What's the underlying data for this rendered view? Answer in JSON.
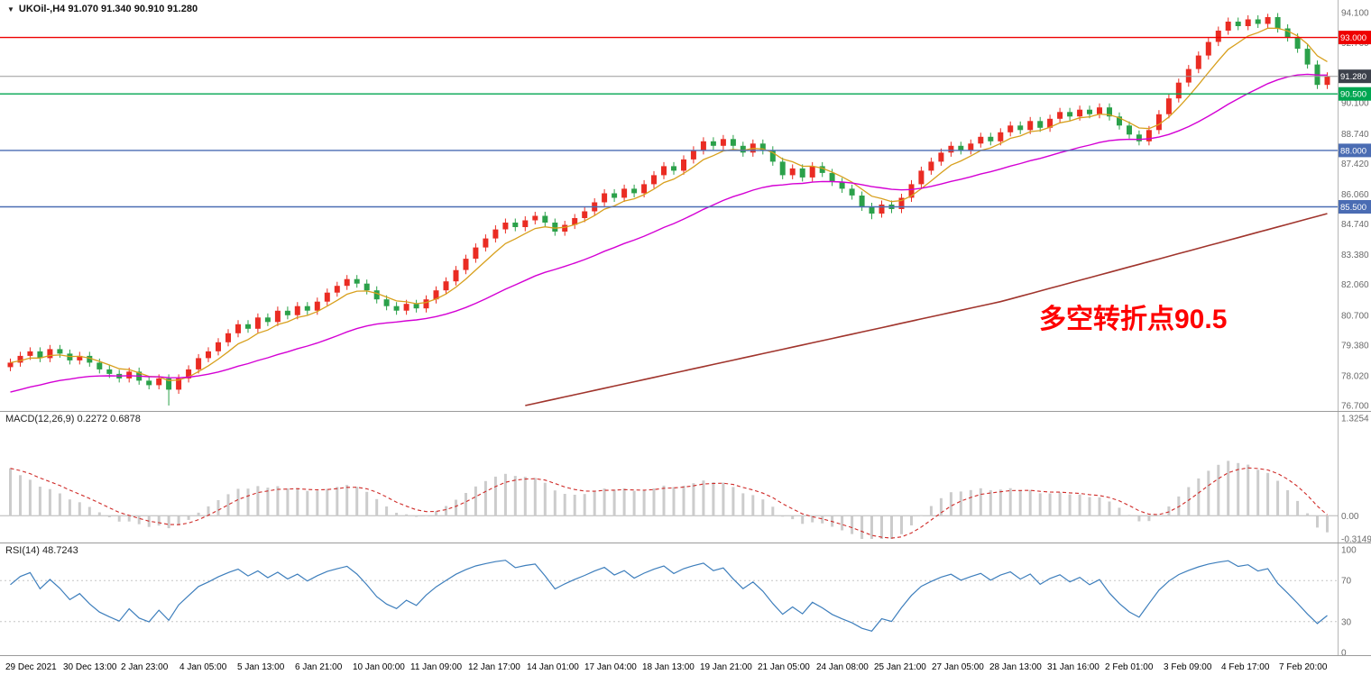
{
  "window": {
    "title_line": "UKOil-,H4 91.070 91.340 90.910 91.280"
  },
  "chart_data": {
    "type": "candlestick",
    "symbol": "UKOil-",
    "timeframe": "H4",
    "ohlc_display": {
      "open": "91.070",
      "high": "91.340",
      "low": "90.910",
      "close": "91.280"
    },
    "ylim": [
      76.7,
      94.1
    ],
    "price_axis_labels": [
      "94.100",
      "92.760",
      "91.420",
      "90.100",
      "88.740",
      "87.420",
      "86.060",
      "84.740",
      "83.380",
      "82.060",
      "80.700",
      "79.380",
      "78.020",
      "76.700"
    ],
    "levels": [
      {
        "value": 93.0,
        "label": "93.000",
        "line_color": "#ee0000",
        "tag_color": "#ee0000",
        "current": false
      },
      {
        "value": 91.28,
        "label": "91.280",
        "line_color": "#9a9a9a",
        "tag_color": "#3c414b",
        "current": true
      },
      {
        "value": 90.5,
        "label": "90.500",
        "line_color": "#00a651",
        "tag_color": "#00a651",
        "current": false
      },
      {
        "value": 88.0,
        "label": "88.000",
        "line_color": "#4a6cb3",
        "tag_color": "#4a6cb3",
        "current": false
      },
      {
        "value": 85.5,
        "label": "85.500",
        "line_color": "#4a6cb3",
        "tag_color": "#4a6cb3",
        "current": false
      }
    ],
    "candles": {
      "open_first": 78.4,
      "wick": 0.18,
      "up_color": "#ea2c23",
      "down_color": "#2ba14a",
      "overrides": {
        "16": {
          "low": 76.7
        },
        "87": {
          "low": 84.95
        },
        "127": {
          "high": 94.05
        }
      },
      "closes": [
        78.6,
        78.9,
        79.1,
        78.8,
        79.2,
        79.0,
        78.7,
        78.9,
        78.6,
        78.3,
        78.1,
        77.9,
        78.2,
        77.8,
        77.6,
        77.9,
        77.4,
        77.9,
        78.3,
        78.8,
        79.1,
        79.5,
        79.9,
        80.3,
        80.1,
        80.6,
        80.4,
        80.9,
        80.7,
        81.1,
        80.9,
        81.3,
        81.7,
        82.0,
        82.3,
        82.1,
        81.8,
        81.4,
        81.1,
        80.9,
        81.2,
        81.0,
        81.4,
        81.8,
        82.2,
        82.7,
        83.2,
        83.7,
        84.1,
        84.5,
        84.8,
        84.6,
        84.9,
        85.1,
        84.8,
        84.4,
        84.7,
        85.0,
        85.3,
        85.7,
        86.1,
        85.9,
        86.3,
        86.1,
        86.5,
        86.9,
        87.3,
        87.1,
        87.6,
        88.0,
        88.4,
        88.2,
        88.5,
        88.2,
        87.9,
        88.3,
        88.0,
        87.5,
        86.9,
        87.2,
        86.8,
        87.3,
        87.0,
        86.6,
        86.3,
        86.0,
        85.5,
        85.2,
        85.6,
        85.4,
        85.9,
        86.5,
        87.1,
        87.5,
        87.9,
        88.2,
        88.0,
        88.3,
        88.6,
        88.4,
        88.8,
        89.1,
        88.9,
        89.3,
        89.0,
        89.4,
        89.7,
        89.5,
        89.8,
        89.6,
        89.9,
        89.5,
        89.1,
        88.7,
        88.4,
        88.9,
        89.6,
        90.3,
        91.0,
        91.6,
        92.2,
        92.8,
        93.3,
        93.7,
        93.5,
        93.8,
        93.6,
        93.9,
        93.4,
        93.0,
        92.5,
        91.8,
        90.9,
        91.28
      ]
    },
    "moving_averages": {
      "fast": {
        "period": 6,
        "color": "#d8a01d"
      },
      "mid": {
        "period": 28,
        "seed": 77.2,
        "color": "#d400d4"
      },
      "slow": {
        "color": "#a0342c",
        "anchors": [
          [
            52,
            76.7
          ],
          [
            100,
            81.3
          ],
          [
            133,
            85.2
          ]
        ]
      }
    },
    "macd": {
      "label": "MACD(12,26,9) 0.2272 0.6878",
      "fast": 6,
      "slow": 10,
      "signal": 5,
      "seed_fast": 78.7,
      "seed_slow": 77.9,
      "ylim": [
        -0.3149,
        1.3254
      ],
      "axis_labels": [
        "1.3254",
        "0.00",
        "-0.3149"
      ],
      "hist_color": "#cccccc",
      "signal_color": "#cf2a27"
    },
    "rsi": {
      "label": "RSI(14) 48.7243",
      "period": 7,
      "levels": [
        70,
        30
      ],
      "axis_labels": [
        "100",
        "70",
        "30",
        "0"
      ],
      "ylim": [
        0,
        100
      ],
      "color": "#3d7ebc"
    },
    "time_labels": [
      "29 Dec 2021",
      "30 Dec 13:00",
      "2 Jan 23:00",
      "4 Jan 05:00",
      "5 Jan 13:00",
      "6 Jan 21:00",
      "10 Jan 00:00",
      "11 Jan 09:00",
      "12 Jan 17:00",
      "14 Jan 01:00",
      "17 Jan 04:00",
      "18 Jan 13:00",
      "19 Jan 21:00",
      "21 Jan 05:00",
      "24 Jan 08:00",
      "25 Jan 21:00",
      "27 Jan 05:00",
      "28 Jan 13:00",
      "31 Jan 16:00",
      "2 Feb 01:00",
      "3 Feb 09:00",
      "4 Feb 17:00",
      "7 Feb 20:00"
    ],
    "annotation": {
      "text": "多空转折点90.5",
      "color": "#fe0000"
    }
  }
}
